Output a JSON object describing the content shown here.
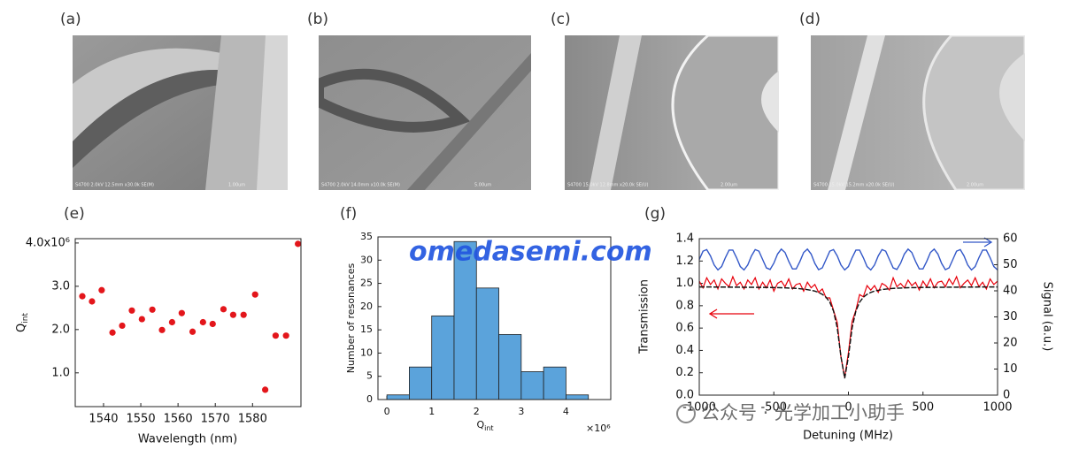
{
  "images": [
    {
      "label": "(a)",
      "info": "S4700 2.0kV 12.5mm x30.0k SE(M)",
      "scale": "1.00um"
    },
    {
      "label": "(b)",
      "info": "S4700 2.0kV 14.0mm x10.0k SE(M)",
      "scale": "5.00um"
    },
    {
      "label": "(c)",
      "info": "S4700 15.0kV 12.8mm x20.0k SE(U)",
      "scale": "2.00um"
    },
    {
      "label": "(d)",
      "info": "S4700 15.0kV 15.2mm x20.0k SE(U)",
      "scale": "2.00um"
    }
  ],
  "watermark": {
    "site": "omedasemi.com",
    "account": "公众号 · 光学加工小助手"
  },
  "chart_data": [
    {
      "type": "scatter",
      "panel_label": "(e)",
      "x_label": "Wavelength (nm)",
      "y_label": "Q",
      "y_label_subscript": "int",
      "color": "#e3161b",
      "x": [
        1534.3,
        1536.9,
        1539.5,
        1542.4,
        1545.0,
        1547.6,
        1550.3,
        1553.1,
        1555.7,
        1558.4,
        1561.0,
        1563.9,
        1566.7,
        1569.3,
        1572.2,
        1574.8,
        1577.6,
        1580.7,
        1583.4,
        1586.2,
        1589.0,
        1592.2
      ],
      "values": [
        2.77,
        2.65,
        2.91,
        1.93,
        2.09,
        2.44,
        2.24,
        2.46,
        1.99,
        2.17,
        2.38,
        1.95,
        2.17,
        2.13,
        2.47,
        2.34,
        2.34,
        2.81,
        0.61,
        1.86,
        1.86,
        3.98
      ],
      "xlim": [
        1532.4,
        1593
      ],
      "xticks": [
        1540,
        1550,
        1560,
        1570,
        1580
      ],
      "ylim": [
        0.22,
        4.1
      ],
      "yticks": [
        {
          "value": 1,
          "label": "1.0"
        },
        {
          "value": 2,
          "label": "2.0"
        },
        {
          "value": 3,
          "label": "3.0"
        },
        {
          "value": 4,
          "label": "4.0x10⁶"
        }
      ]
    },
    {
      "type": "histogram",
      "panel_label": "(f)",
      "x_label": "Q",
      "x_label_subscript": "int",
      "x_multiplier": "×10⁶",
      "y_label": "Number of resonances",
      "color": "#5ba3db",
      "bins": [
        0,
        0.5,
        1,
        1.5,
        2,
        2.5,
        3,
        3.5,
        4,
        4.5
      ],
      "values": [
        1,
        7,
        18,
        34,
        24,
        14,
        6,
        7,
        1
      ],
      "xlim": [
        -0.2,
        5
      ],
      "xticks": [
        0,
        1,
        2,
        3,
        4
      ],
      "ylim": [
        0,
        35
      ],
      "yticks": [
        0,
        5,
        10,
        15,
        20,
        25,
        30,
        35
      ]
    },
    {
      "type": "line",
      "panel_label": "(g)",
      "x_label": "Detuning (MHz)",
      "y_label": "Transmission",
      "y2_label": "Signal (a.u.)",
      "x": [
        -1000,
        -975,
        -950,
        -925,
        -900,
        -875,
        -850,
        -825,
        -800,
        -775,
        -750,
        -725,
        -700,
        -675,
        -650,
        -625,
        -600,
        -575,
        -550,
        -525,
        -500,
        -475,
        -450,
        -425,
        -400,
        -375,
        -350,
        -325,
        -300,
        -275,
        -250,
        -225,
        -200,
        -175,
        -150,
        -125,
        -100,
        -75,
        -50,
        -25,
        0,
        25,
        50,
        75,
        100,
        125,
        150,
        175,
        200,
        225,
        250,
        275,
        300,
        325,
        350,
        375,
        400,
        425,
        450,
        475,
        500,
        525,
        550,
        575,
        600,
        625,
        650,
        675,
        700,
        725,
        750,
        775,
        800,
        825,
        850,
        875,
        900,
        925,
        950,
        975,
        1000
      ],
      "series": [
        {
          "color": "#e8000b",
          "values": [
            1.02,
            0.96,
            1.05,
            0.99,
            1.03,
            0.95,
            1.04,
            1.0,
            0.97,
            1.06,
            0.98,
            1.01,
            0.95,
            1.03,
            0.99,
            1.05,
            0.95,
            1.01,
            0.96,
            1.03,
            0.93,
            1.0,
            1.02,
            0.97,
            1.04,
            0.95,
            0.99,
            1.0,
            0.93,
            1.01,
            0.96,
            0.99,
            0.92,
            0.95,
            0.87,
            0.87,
            0.76,
            0.65,
            0.34,
            0.16,
            0.38,
            0.66,
            0.76,
            0.9,
            0.88,
            0.98,
            0.94,
            0.98,
            0.92,
            1.0,
            0.98,
            0.94,
            1.05,
            0.97,
            1.0,
            0.96,
            1.03,
            0.98,
            1.01,
            0.94,
            1.02,
            0.97,
            1.04,
            0.96,
            1.01,
            1.02,
            0.97,
            1.04,
            0.99,
            1.06,
            0.96,
            1.0,
            1.03,
            0.98,
            1.05,
            0.97,
            1.01,
            0.95,
            1.04,
            0.99,
            1.02
          ]
        },
        {
          "color": "#111111",
          "values": [
            0.968,
            0.968,
            0.968,
            0.968,
            0.967,
            0.967,
            0.967,
            0.967,
            0.966,
            0.966,
            0.966,
            0.966,
            0.965,
            0.965,
            0.965,
            0.965,
            0.964,
            0.964,
            0.964,
            0.963,
            0.962,
            0.962,
            0.961,
            0.96,
            0.958,
            0.957,
            0.955,
            0.952,
            0.949,
            0.944,
            0.938,
            0.931,
            0.919,
            0.902,
            0.876,
            0.832,
            0.753,
            0.603,
            0.344,
            0.15,
            0.344,
            0.603,
            0.753,
            0.832,
            0.876,
            0.902,
            0.919,
            0.931,
            0.938,
            0.944,
            0.949,
            0.952,
            0.955,
            0.957,
            0.958,
            0.96,
            0.961,
            0.962,
            0.962,
            0.963,
            0.964,
            0.964,
            0.964,
            0.965,
            0.965,
            0.965,
            0.965,
            0.966,
            0.966,
            0.966,
            0.966,
            0.967,
            0.967,
            0.967,
            0.967,
            0.968,
            0.968,
            0.968,
            0.968,
            0.968,
            0.968
          ]
        },
        {
          "color": "#3358c8",
          "axis": "y2",
          "values": [
            52.0,
            55.2,
            55.8,
            53.4,
            49.9,
            48.0,
            49.3,
            52.7,
            55.6,
            55.6,
            52.7,
            49.3,
            48.0,
            49.9,
            53.4,
            55.8,
            55.2,
            52.0,
            48.8,
            48.2,
            50.6,
            54.1,
            56.0,
            54.7,
            51.3,
            48.4,
            48.4,
            51.3,
            54.7,
            56.0,
            54.1,
            50.5,
            48.1,
            48.8,
            52.0,
            55.2,
            55.8,
            53.4,
            49.9,
            48.0,
            49.3,
            52.7,
            55.6,
            55.6,
            52.7,
            49.3,
            48.0,
            49.9,
            53.4,
            55.8,
            55.2,
            52.0,
            48.8,
            48.2,
            50.6,
            54.1,
            56.0,
            54.7,
            51.3,
            48.4,
            48.4,
            51.3,
            54.7,
            56.0,
            54.1,
            50.5,
            48.1,
            48.8,
            52.0,
            55.2,
            55.8,
            53.4,
            49.9,
            48.0,
            49.3,
            52.7,
            55.6,
            55.6,
            52.7,
            49.3,
            48.0
          ]
        }
      ],
      "xlim": [
        -1000,
        1000
      ],
      "xticks": [
        -1000,
        -500,
        0,
        500,
        1000
      ],
      "ylim": [
        0,
        1.4
      ],
      "yticks": [
        {
          "value": 0,
          "label": "0.0"
        },
        0.2,
        0.4,
        0.6,
        0.8,
        {
          "value": 1,
          "label": "1.0"
        },
        1.2,
        1.4
      ],
      "y2lim": [
        0,
        60
      ],
      "y2ticks": [
        0,
        10,
        20,
        30,
        40,
        50,
        60
      ]
    }
  ]
}
